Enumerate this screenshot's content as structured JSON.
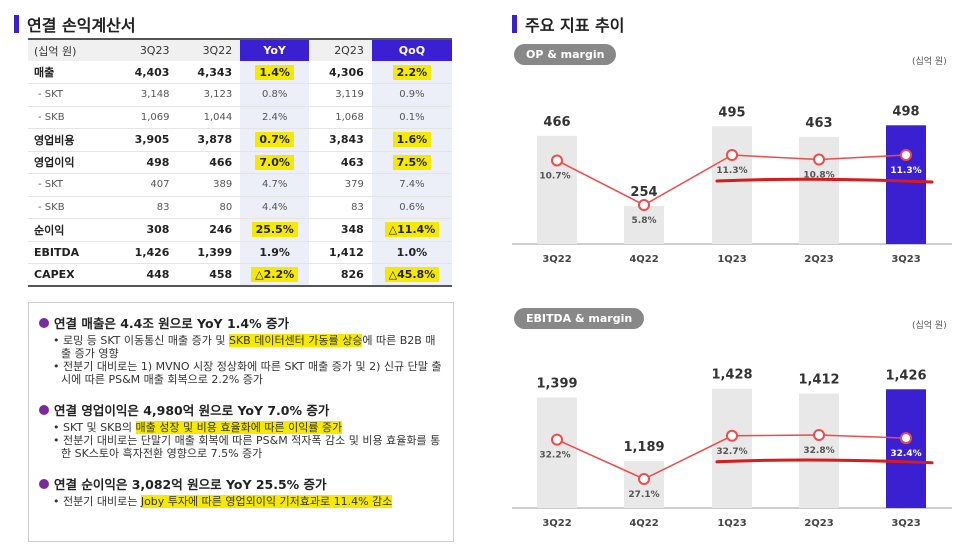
{
  "left_title": "연결 손익계산서",
  "right_title": "주요 지표 추이",
  "table": {
    "headers": [
      "(십억 원)",
      "3Q23",
      "3Q22",
      "YoY",
      "2Q23",
      "QoQ"
    ],
    "rows": [
      {
        "label": "매출",
        "v": [
          "4,403",
          "4,343",
          "1.4%",
          "4,306",
          "2.2%"
        ],
        "main": true,
        "yoy_hl": true,
        "qoq_hl": true
      },
      {
        "label": "- SKT",
        "v": [
          "3,148",
          "3,123",
          "0.8%",
          "3,119",
          "0.9%"
        ],
        "main": false
      },
      {
        "label": "- SKB",
        "v": [
          "1,069",
          "1,044",
          "2.4%",
          "1,068",
          "0.1%"
        ],
        "main": false
      },
      {
        "label": "영업비용",
        "v": [
          "3,905",
          "3,878",
          "0.7%",
          "3,843",
          "1.6%"
        ],
        "main": true,
        "yoy_hl": true,
        "qoq_hl": true
      },
      {
        "label": "영업이익",
        "v": [
          "498",
          "466",
          "7.0%",
          "463",
          "7.5%"
        ],
        "main": true,
        "yoy_hl": true,
        "qoq_hl": true
      },
      {
        "label": "- SKT",
        "v": [
          "407",
          "389",
          "4.7%",
          "379",
          "7.4%"
        ],
        "main": false
      },
      {
        "label": "- SKB",
        "v": [
          "83",
          "80",
          "4.4%",
          "83",
          "0.6%"
        ],
        "main": false
      },
      {
        "label": "순이익",
        "v": [
          "308",
          "246",
          "25.5%",
          "348",
          "△11.4%"
        ],
        "main": true,
        "yoy_hl": true,
        "qoq_hl": true
      },
      {
        "label": "EBITDA",
        "v": [
          "1,426",
          "1,399",
          "1.9%",
          "1,412",
          "1.0%"
        ],
        "main": true
      },
      {
        "label": "CAPEX",
        "v": [
          "448",
          "458",
          "△2.2%",
          "826",
          "△45.8%"
        ],
        "main": true,
        "yoy_hl": true,
        "qoq_hl": true
      }
    ]
  },
  "notes": [
    {
      "head": "연결 매출은 4.4조 원으로 YoY 1.4% 증가",
      "bullets": [
        [
          "• 로밍 등 SKT 이동통신 매출 증가 및 ",
          "SKB 데이터센터 가동률 상승",
          "에 따른 B2B 매출 증가 영향"
        ],
        [
          "• 전분기 대비로는 1) MVNO 시장 정상화에 따른 SKT 매출 증가 및 2) 신규 단말 출시에 따른 PS&M 매출 회복으로 2.2% 증가",
          "",
          ""
        ]
      ]
    },
    {
      "head": "연결 영업이익은 4,980억 원으로 YoY 7.0% 증가",
      "bullets": [
        [
          "• SKT 및 SKB의 ",
          "매출 성장 및 비용 효율화에 따른 이익률 증가",
          ""
        ],
        [
          "• 전분기 대비로는 단말기 매출 회복에 따른 PS&M 적자폭 감소 및 비용 효율화를 통한 SK스토아 흑자전환 영향으로 7.5% 증가",
          "",
          ""
        ]
      ]
    },
    {
      "head": "연결 순이익은 3,082억 원으로 YoY 25.5% 증가",
      "bullets": [
        [
          "• 전분기 대비로는 ",
          "Joby 투자에 따른 영업외이익 기저효과로 11.4% 감소",
          ""
        ]
      ]
    }
  ],
  "chart_data": [
    {
      "type": "bar",
      "title": "OP & margin",
      "unit": "(십억 원)",
      "categories": [
        "3Q22",
        "4Q22",
        "1Q23",
        "2Q23",
        "3Q23"
      ],
      "series": [
        {
          "name": "",
          "values": [
            466,
            254,
            495,
            463,
            498
          ],
          "labels": [
            "466",
            "254",
            "495",
            "463",
            "498"
          ]
        },
        {
          "name": "",
          "values": [
            10.7,
            5.8,
            11.3,
            10.8,
            11.3
          ],
          "labels": [
            "10.7%",
            "5.8%",
            "11.3%",
            "10.8%",
            "11.3%"
          ]
        }
      ],
      "colors": {
        "bar": "#e8e8e8",
        "bar_highlight": "#3a20d0",
        "line": "#f04a4a"
      }
    },
    {
      "type": "bar",
      "title": "EBITDA & margin",
      "unit": "(십억 원)",
      "categories": [
        "3Q22",
        "4Q22",
        "1Q23",
        "2Q23",
        "3Q23"
      ],
      "series": [
        {
          "name": "",
          "values": [
            1399,
            1189,
            1428,
            1412,
            1426
          ],
          "labels": [
            "1,399",
            "1,189",
            "1,428",
            "1,412",
            "1,426"
          ]
        },
        {
          "name": "",
          "values": [
            32.2,
            27.1,
            32.7,
            32.8,
            32.4
          ],
          "labels": [
            "32.2%",
            "27.1%",
            "32.7%",
            "32.8%",
            "32.4%"
          ]
        }
      ],
      "colors": {
        "bar": "#e8e8e8",
        "bar_highlight": "#3a20d0",
        "line": "#f04a4a"
      }
    }
  ]
}
